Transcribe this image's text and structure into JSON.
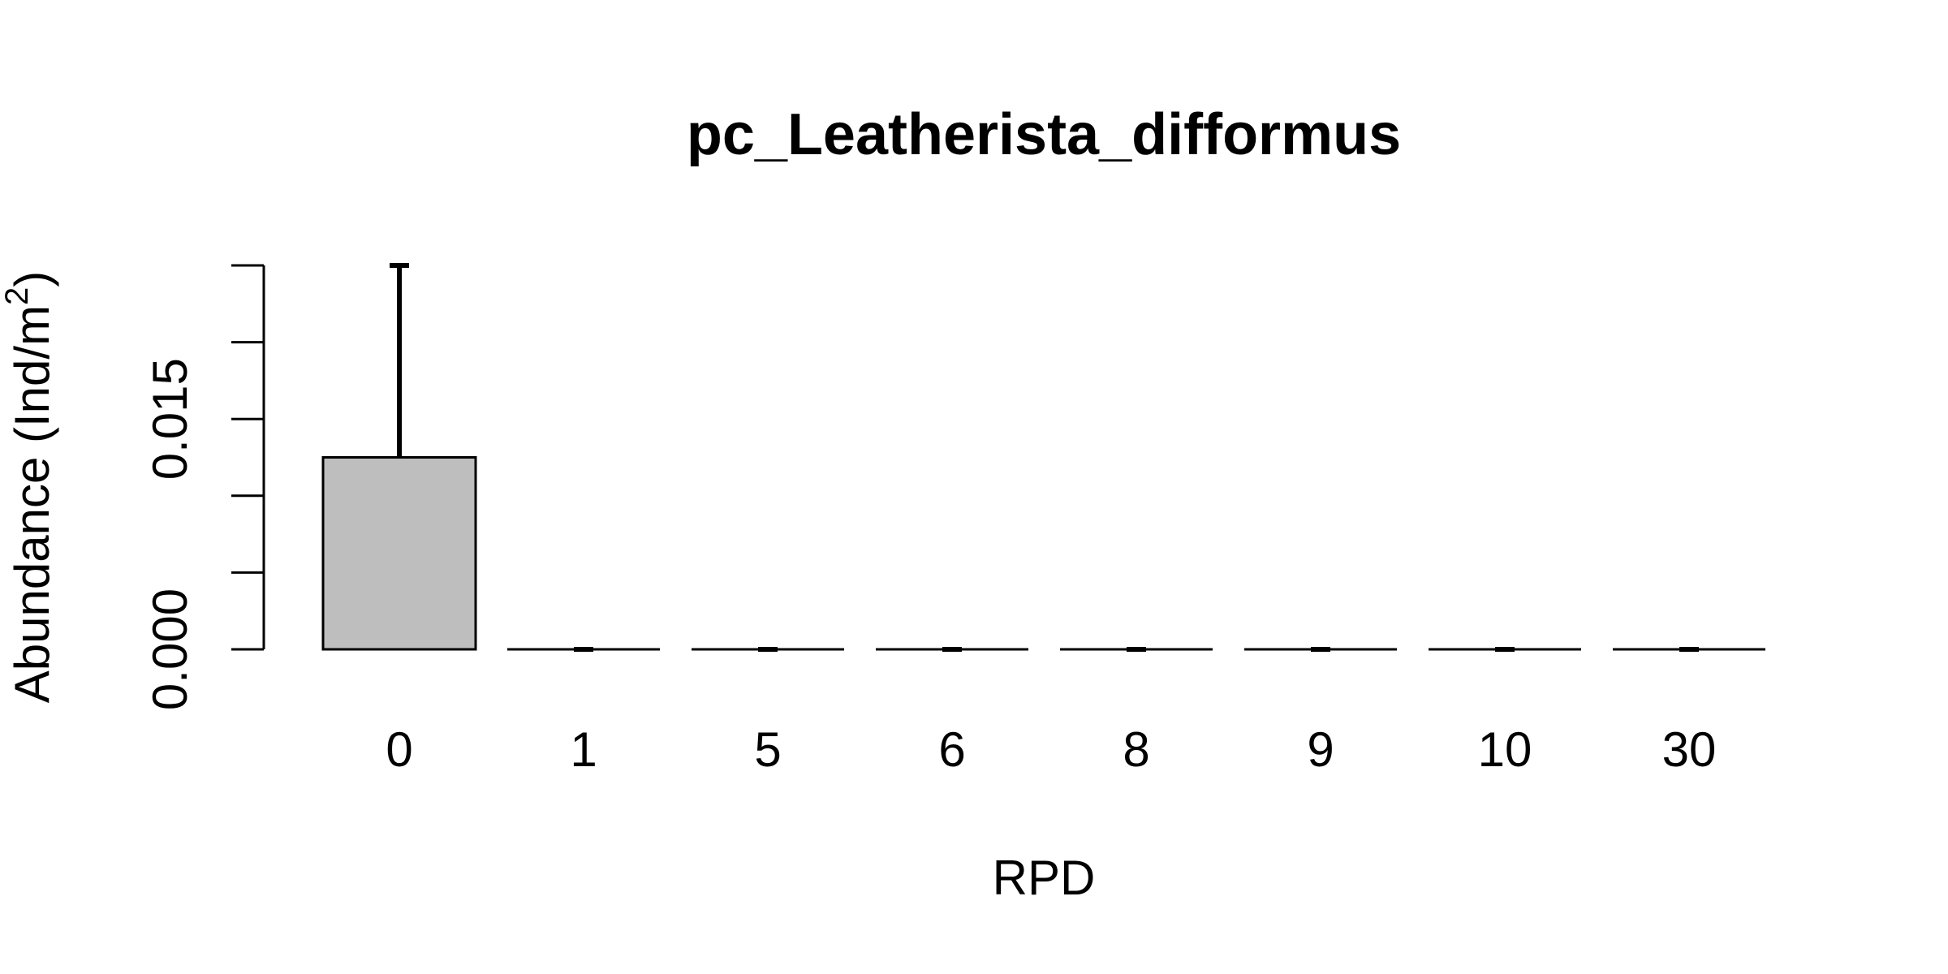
{
  "chart_data": {
    "type": "bar",
    "title": "pc_Leatherista_difformus",
    "xlabel": "RPD",
    "ylabel": {
      "main": "Abundance (Ind/m",
      "sup": "2",
      "close": ")"
    },
    "categories": [
      "0",
      "1",
      "5",
      "6",
      "8",
      "9",
      "10",
      "30"
    ],
    "values": [
      0.0125,
      0,
      0,
      0,
      0,
      0,
      0,
      0
    ],
    "error_upper": [
      0.025,
      0,
      0,
      0,
      0,
      0,
      0,
      0
    ],
    "ylim": [
      0,
      0.025
    ],
    "yticks": [
      0,
      0.005,
      0.01,
      0.015,
      0.02,
      0.025
    ],
    "ytick_labels": [
      "0.000",
      "",
      "",
      "0.015",
      "",
      ""
    ],
    "bar_color": "#bebebe",
    "grid": false
  }
}
